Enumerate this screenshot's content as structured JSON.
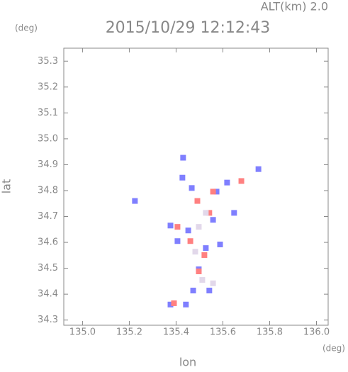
{
  "chart_data": {
    "type": "scatter",
    "title": "2015/10/29 12:12:43",
    "subtitle": "ALT(km) 2.0",
    "y_unit": "(deg)",
    "x_unit": "(deg)",
    "xlabel": "lon",
    "ylabel": "lat",
    "xlim": [
      134.92,
      136.05
    ],
    "ylim": [
      34.28,
      35.35
    ],
    "xticks": [
      {
        "value": 135.0,
        "label": "135.0"
      },
      135.2,
      135.4,
      135.6,
      135.8,
      {
        "value": 136.0,
        "label": "136.0"
      }
    ],
    "yticks": [
      34.3,
      34.4,
      34.5,
      34.6,
      34.7,
      34.8,
      34.9,
      {
        "value": 35.0,
        "label": "35.0"
      },
      35.1,
      35.2,
      35.3
    ],
    "series": [
      {
        "color": "#7f7fff",
        "x": [
          135.43,
          135.752,
          135.224,
          135.376,
          135.452,
          135.558,
          135.527,
          135.406,
          135.497,
          135.473,
          135.542,
          135.442,
          135.376,
          135.588,
          135.648,
          135.573,
          135.467,
          135.618,
          135.427
        ],
        "y": [
          34.927,
          34.883,
          34.76,
          34.665,
          34.646,
          34.687,
          34.578,
          34.605,
          34.496,
          34.414,
          34.414,
          34.36,
          34.36,
          34.592,
          34.714,
          34.796,
          34.81,
          34.831,
          34.85
        ]
      },
      {
        "color": "#ff8080",
        "x": [
          135.558,
          135.491,
          135.461,
          135.497,
          135.391,
          135.521,
          135.679,
          135.542,
          135.406
        ],
        "y": [
          34.796,
          34.76,
          34.605,
          34.488,
          34.365,
          34.551,
          34.837,
          34.714,
          34.66
        ]
      },
      {
        "color": "#e2d8ea",
        "x": [
          135.497,
          135.527,
          135.482,
          135.512,
          135.558
        ],
        "y": [
          34.66,
          34.714,
          34.564,
          34.455,
          34.442
        ]
      }
    ]
  }
}
